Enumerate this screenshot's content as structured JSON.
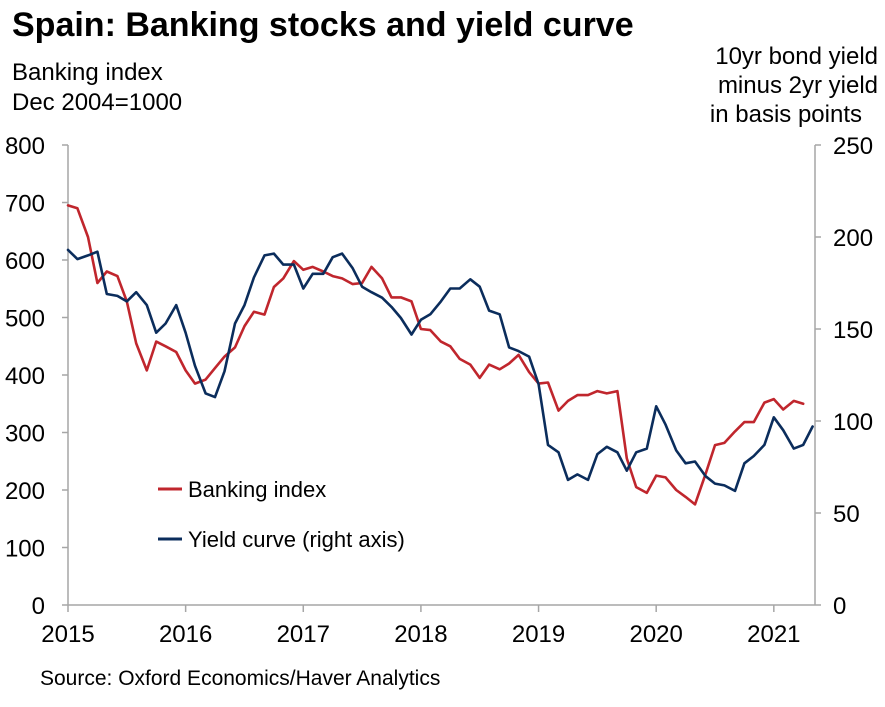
{
  "chart_data": {
    "type": "line",
    "title": "Spain: Banking stocks and yield curve",
    "left_axis_label": [
      "Banking index",
      "Dec 2004=1000"
    ],
    "right_axis_label": [
      "10yr bond yield",
      "minus 2yr yield",
      "in basis points"
    ],
    "source": "Source: Oxford Economics/Haver Analytics",
    "x_range": [
      2015.0,
      2021.33
    ],
    "x_ticks": [
      "2015",
      "2016",
      "2017",
      "2018",
      "2019",
      "2020",
      "2021"
    ],
    "y_left_range": [
      0,
      800
    ],
    "y_left_ticks": [
      "0",
      "100",
      "200",
      "300",
      "400",
      "500",
      "600",
      "700",
      "800"
    ],
    "y_right_range": [
      0,
      250
    ],
    "y_right_ticks": [
      "0",
      "50",
      "100",
      "150",
      "200",
      "250"
    ],
    "colors": {
      "banking": "#c0262d",
      "yield": "#0b2d5c",
      "axis": "#a6a6a6"
    },
    "series": [
      {
        "name": "Banking index",
        "axis": "left",
        "values": [
          [
            2015.0,
            695
          ],
          [
            2015.08,
            690
          ],
          [
            2015.17,
            640
          ],
          [
            2015.25,
            560
          ],
          [
            2015.33,
            580
          ],
          [
            2015.42,
            572
          ],
          [
            2015.5,
            528
          ],
          [
            2015.58,
            455
          ],
          [
            2015.67,
            408
          ],
          [
            2015.75,
            458
          ],
          [
            2015.83,
            450
          ],
          [
            2015.92,
            440
          ],
          [
            2016.0,
            408
          ],
          [
            2016.08,
            385
          ],
          [
            2016.17,
            392
          ],
          [
            2016.25,
            412
          ],
          [
            2016.33,
            432
          ],
          [
            2016.42,
            448
          ],
          [
            2016.5,
            485
          ],
          [
            2016.58,
            510
          ],
          [
            2016.67,
            505
          ],
          [
            2016.75,
            553
          ],
          [
            2016.83,
            568
          ],
          [
            2016.92,
            598
          ],
          [
            2017.0,
            583
          ],
          [
            2017.08,
            588
          ],
          [
            2017.17,
            580
          ],
          [
            2017.25,
            572
          ],
          [
            2017.33,
            568
          ],
          [
            2017.42,
            558
          ],
          [
            2017.5,
            560
          ],
          [
            2017.58,
            588
          ],
          [
            2017.67,
            568
          ],
          [
            2017.75,
            535
          ],
          [
            2017.83,
            535
          ],
          [
            2017.92,
            528
          ],
          [
            2018.0,
            480
          ],
          [
            2018.08,
            478
          ],
          [
            2018.17,
            458
          ],
          [
            2018.25,
            450
          ],
          [
            2018.33,
            428
          ],
          [
            2018.42,
            418
          ],
          [
            2018.5,
            395
          ],
          [
            2018.58,
            418
          ],
          [
            2018.67,
            410
          ],
          [
            2018.75,
            420
          ],
          [
            2018.83,
            435
          ],
          [
            2018.92,
            405
          ],
          [
            2019.0,
            385
          ],
          [
            2019.08,
            387
          ],
          [
            2019.17,
            338
          ],
          [
            2019.25,
            355
          ],
          [
            2019.33,
            365
          ],
          [
            2019.42,
            365
          ],
          [
            2019.5,
            372
          ],
          [
            2019.58,
            368
          ],
          [
            2019.67,
            372
          ],
          [
            2019.75,
            255
          ],
          [
            2019.83,
            205
          ],
          [
            2019.92,
            195
          ],
          [
            2020.0,
            225
          ],
          [
            2020.08,
            222
          ],
          [
            2020.17,
            200
          ],
          [
            2020.25,
            188
          ],
          [
            2020.33,
            175
          ],
          [
            2020.42,
            228
          ],
          [
            2020.5,
            278
          ],
          [
            2020.58,
            282
          ],
          [
            2020.67,
            302
          ],
          [
            2020.75,
            318
          ],
          [
            2020.83,
            318
          ],
          [
            2020.92,
            352
          ],
          [
            2021.0,
            358
          ],
          [
            2021.08,
            340
          ],
          [
            2021.17,
            355
          ],
          [
            2021.25,
            350
          ]
        ]
      },
      {
        "name": "Yield curve (right axis)",
        "axis": "right",
        "values": [
          [
            2015.0,
            193
          ],
          [
            2015.08,
            188
          ],
          [
            2015.17,
            190
          ],
          [
            2015.25,
            192
          ],
          [
            2015.33,
            169
          ],
          [
            2015.42,
            168
          ],
          [
            2015.5,
            165
          ],
          [
            2015.58,
            170
          ],
          [
            2015.67,
            163
          ],
          [
            2015.75,
            148
          ],
          [
            2015.83,
            153
          ],
          [
            2015.92,
            163
          ],
          [
            2016.0,
            148
          ],
          [
            2016.08,
            130
          ],
          [
            2016.17,
            115
          ],
          [
            2016.25,
            113
          ],
          [
            2016.33,
            127
          ],
          [
            2016.42,
            153
          ],
          [
            2016.5,
            163
          ],
          [
            2016.58,
            178
          ],
          [
            2016.67,
            190
          ],
          [
            2016.75,
            191
          ],
          [
            2016.83,
            185
          ],
          [
            2016.92,
            185
          ],
          [
            2017.0,
            172
          ],
          [
            2017.08,
            180
          ],
          [
            2017.17,
            180
          ],
          [
            2017.25,
            189
          ],
          [
            2017.33,
            191
          ],
          [
            2017.42,
            183
          ],
          [
            2017.5,
            173
          ],
          [
            2017.58,
            170
          ],
          [
            2017.67,
            167
          ],
          [
            2017.75,
            162
          ],
          [
            2017.83,
            156
          ],
          [
            2017.92,
            147
          ],
          [
            2018.0,
            155
          ],
          [
            2018.08,
            158
          ],
          [
            2018.17,
            165
          ],
          [
            2018.25,
            172
          ],
          [
            2018.33,
            172
          ],
          [
            2018.42,
            177
          ],
          [
            2018.5,
            173
          ],
          [
            2018.58,
            160
          ],
          [
            2018.67,
            158
          ],
          [
            2018.75,
            140
          ],
          [
            2018.83,
            138
          ],
          [
            2018.92,
            135
          ],
          [
            2019.0,
            120
          ],
          [
            2019.08,
            87
          ],
          [
            2019.17,
            83
          ],
          [
            2019.25,
            68
          ],
          [
            2019.33,
            71
          ],
          [
            2019.42,
            68
          ],
          [
            2019.5,
            82
          ],
          [
            2019.58,
            86
          ],
          [
            2019.67,
            83
          ],
          [
            2019.75,
            73
          ],
          [
            2019.83,
            83
          ],
          [
            2019.92,
            85
          ],
          [
            2020.0,
            108
          ],
          [
            2020.08,
            98
          ],
          [
            2020.17,
            84
          ],
          [
            2020.25,
            77
          ],
          [
            2020.33,
            78
          ],
          [
            2020.42,
            70
          ],
          [
            2020.5,
            66
          ],
          [
            2020.58,
            65
          ],
          [
            2020.67,
            62
          ],
          [
            2020.75,
            77
          ],
          [
            2020.83,
            81
          ],
          [
            2020.92,
            87
          ],
          [
            2021.0,
            102
          ],
          [
            2021.08,
            95
          ],
          [
            2021.17,
            85
          ],
          [
            2021.25,
            87
          ],
          [
            2021.33,
            97
          ]
        ]
      }
    ]
  }
}
